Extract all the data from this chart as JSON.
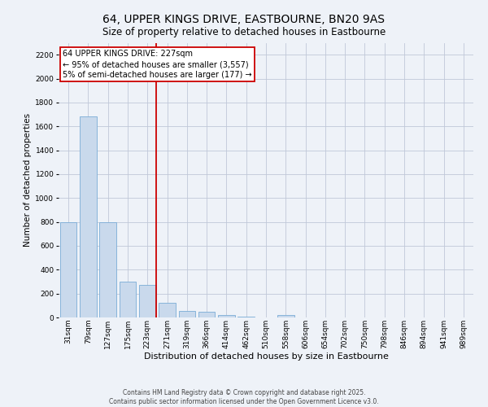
{
  "title": "64, UPPER KINGS DRIVE, EASTBOURNE, BN20 9AS",
  "subtitle": "Size of property relative to detached houses in Eastbourne",
  "xlabel": "Distribution of detached houses by size in Eastbourne",
  "ylabel": "Number of detached properties",
  "categories": [
    "31sqm",
    "79sqm",
    "127sqm",
    "175sqm",
    "223sqm",
    "271sqm",
    "319sqm",
    "366sqm",
    "414sqm",
    "462sqm",
    "510sqm",
    "558sqm",
    "606sqm",
    "654sqm",
    "702sqm",
    "750sqm",
    "798sqm",
    "846sqm",
    "894sqm",
    "941sqm",
    "989sqm"
  ],
  "values": [
    800,
    1680,
    800,
    300,
    270,
    120,
    55,
    45,
    20,
    10,
    0,
    18,
    0,
    0,
    0,
    0,
    0,
    0,
    0,
    0,
    0
  ],
  "bar_color": "#c9d9ec",
  "bar_edge_color": "#7aacd6",
  "grid_color": "#c0c8d8",
  "background_color": "#eef2f8",
  "annotation_text": "64 UPPER KINGS DRIVE: 227sqm\n← 95% of detached houses are smaller (3,557)\n5% of semi-detached houses are larger (177) →",
  "annotation_box_color": "#ffffff",
  "annotation_border_color": "#cc0000",
  "footer_line1": "Contains HM Land Registry data © Crown copyright and database right 2025.",
  "footer_line2": "Contains public sector information licensed under the Open Government Licence v3.0.",
  "ylim": [
    0,
    2300
  ],
  "yticks": [
    0,
    200,
    400,
    600,
    800,
    1000,
    1200,
    1400,
    1600,
    1800,
    2000,
    2200
  ],
  "title_fontsize": 10,
  "subtitle_fontsize": 8.5,
  "xlabel_fontsize": 8,
  "ylabel_fontsize": 7.5,
  "tick_fontsize": 6.5,
  "annotation_fontsize": 7,
  "footer_fontsize": 5.5
}
